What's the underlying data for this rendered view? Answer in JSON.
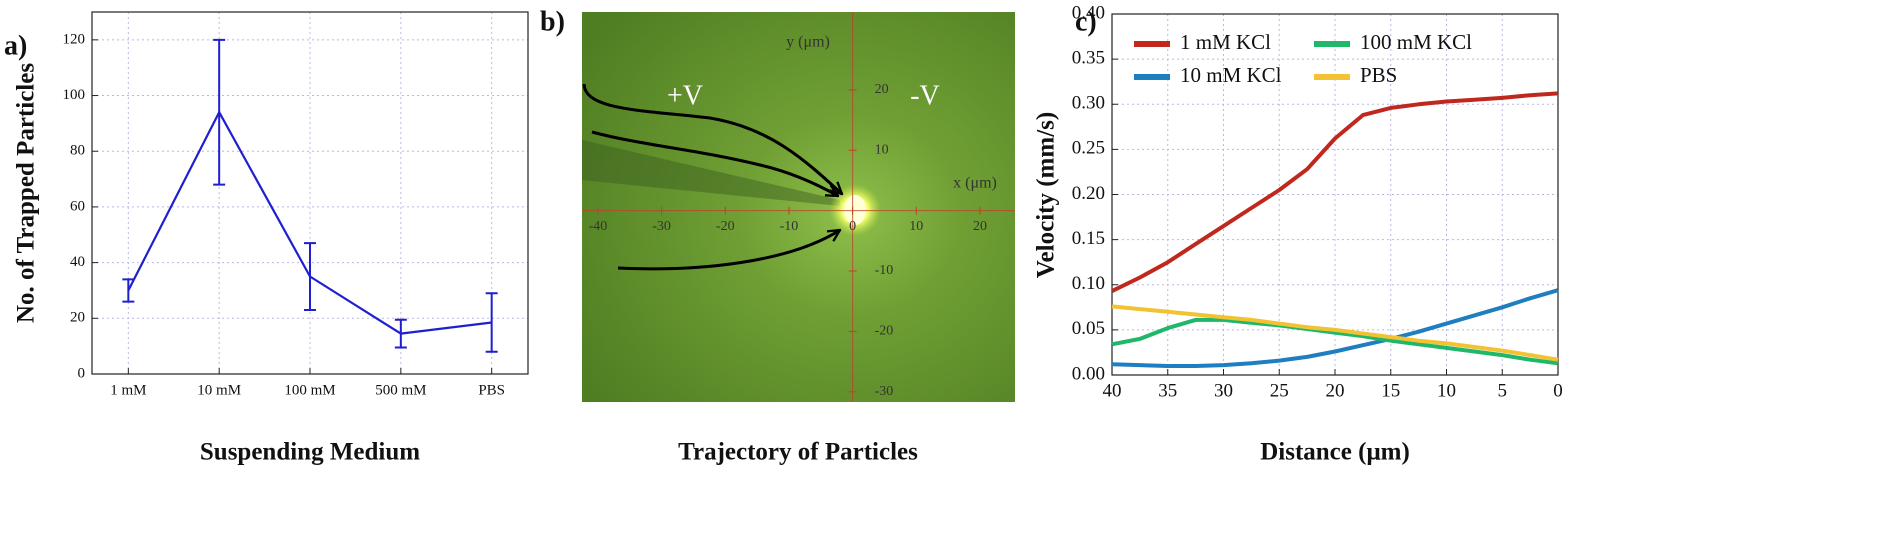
{
  "chart_data": [
    {
      "type": "line",
      "panel_label": "a)",
      "categories": [
        "1 mM",
        "10 mM",
        "100 mM",
        "500 mM",
        "PBS"
      ],
      "values": [
        30,
        94,
        35,
        14.5,
        18.5
      ],
      "errors": [
        4,
        26,
        12,
        5,
        10.5
      ],
      "color": "#1f1fd0",
      "ylim": [
        0,
        130
      ],
      "yticks": [
        0,
        20,
        40,
        60,
        80,
        100,
        120
      ],
      "xlabel": "Suspending Medium",
      "ylabel": "No. of Trapped Particles",
      "grid": true
    },
    {
      "type": "image",
      "panel_label": "b)",
      "xlabel": "Trajectory of Particles",
      "x_axis_label": "x (μm)",
      "y_axis_label": "y (μm)",
      "annotations": [
        "+V",
        "-V"
      ],
      "xlim": [
        -42.5,
        25.5
      ],
      "ylim": [
        -31.7,
        32.9
      ],
      "xticks": [
        -40,
        -30,
        -20,
        -10,
        0,
        10,
        20
      ],
      "yticks": [
        -30,
        -20,
        -10,
        10,
        20
      ]
    },
    {
      "type": "line",
      "panel_label": "c)",
      "x": [
        40,
        37.5,
        35,
        32.5,
        30,
        27.5,
        25,
        22.5,
        20,
        17.5,
        15,
        12.5,
        10,
        7.5,
        5,
        2.5,
        0
      ],
      "series": [
        {
          "name": "1 mM KCl",
          "color": "#c0281e",
          "values": [
            0.093,
            0.108,
            0.125,
            0.145,
            0.165,
            0.185,
            0.205,
            0.228,
            0.262,
            0.288,
            0.296,
            0.3,
            0.303,
            0.305,
            0.307,
            0.31,
            0.312
          ]
        },
        {
          "name": "10 mM KCl",
          "color": "#1f7ec0",
          "values": [
            0.012,
            0.011,
            0.01,
            0.01,
            0.011,
            0.013,
            0.016,
            0.02,
            0.026,
            0.033,
            0.04,
            0.048,
            0.057,
            0.066,
            0.075,
            0.085,
            0.094
          ]
        },
        {
          "name": "100 mM KCl",
          "color": "#1fb86a",
          "values": [
            0.034,
            0.04,
            0.052,
            0.061,
            0.061,
            0.058,
            0.055,
            0.051,
            0.047,
            0.043,
            0.038,
            0.034,
            0.03,
            0.026,
            0.022,
            0.017,
            0.013
          ]
        },
        {
          "name": "PBS",
          "color": "#f2c233",
          "values": [
            0.076,
            0.073,
            0.07,
            0.067,
            0.064,
            0.061,
            0.057,
            0.053,
            0.05,
            0.046,
            0.042,
            0.038,
            0.035,
            0.031,
            0.027,
            0.022,
            0.017
          ]
        }
      ],
      "xlim": [
        40,
        0
      ],
      "xticks": [
        40,
        35,
        30,
        25,
        20,
        15,
        10,
        5,
        0
      ],
      "ylim": [
        0,
        0.4
      ],
      "yticks": [
        {
          "value": 0,
          "label": "0.00"
        },
        0.05,
        {
          "value": 0.1,
          "label": "0.10"
        },
        0.15,
        {
          "value": 0.2,
          "label": "0.20"
        },
        0.25,
        {
          "value": 0.3,
          "label": "0.30"
        },
        0.35,
        {
          "value": 0.4,
          "label": "0.40"
        }
      ],
      "xlabel": "Distance (μm)",
      "ylabel": "Velocity (mm/s)",
      "grid": true,
      "legend": "upper left"
    }
  ]
}
